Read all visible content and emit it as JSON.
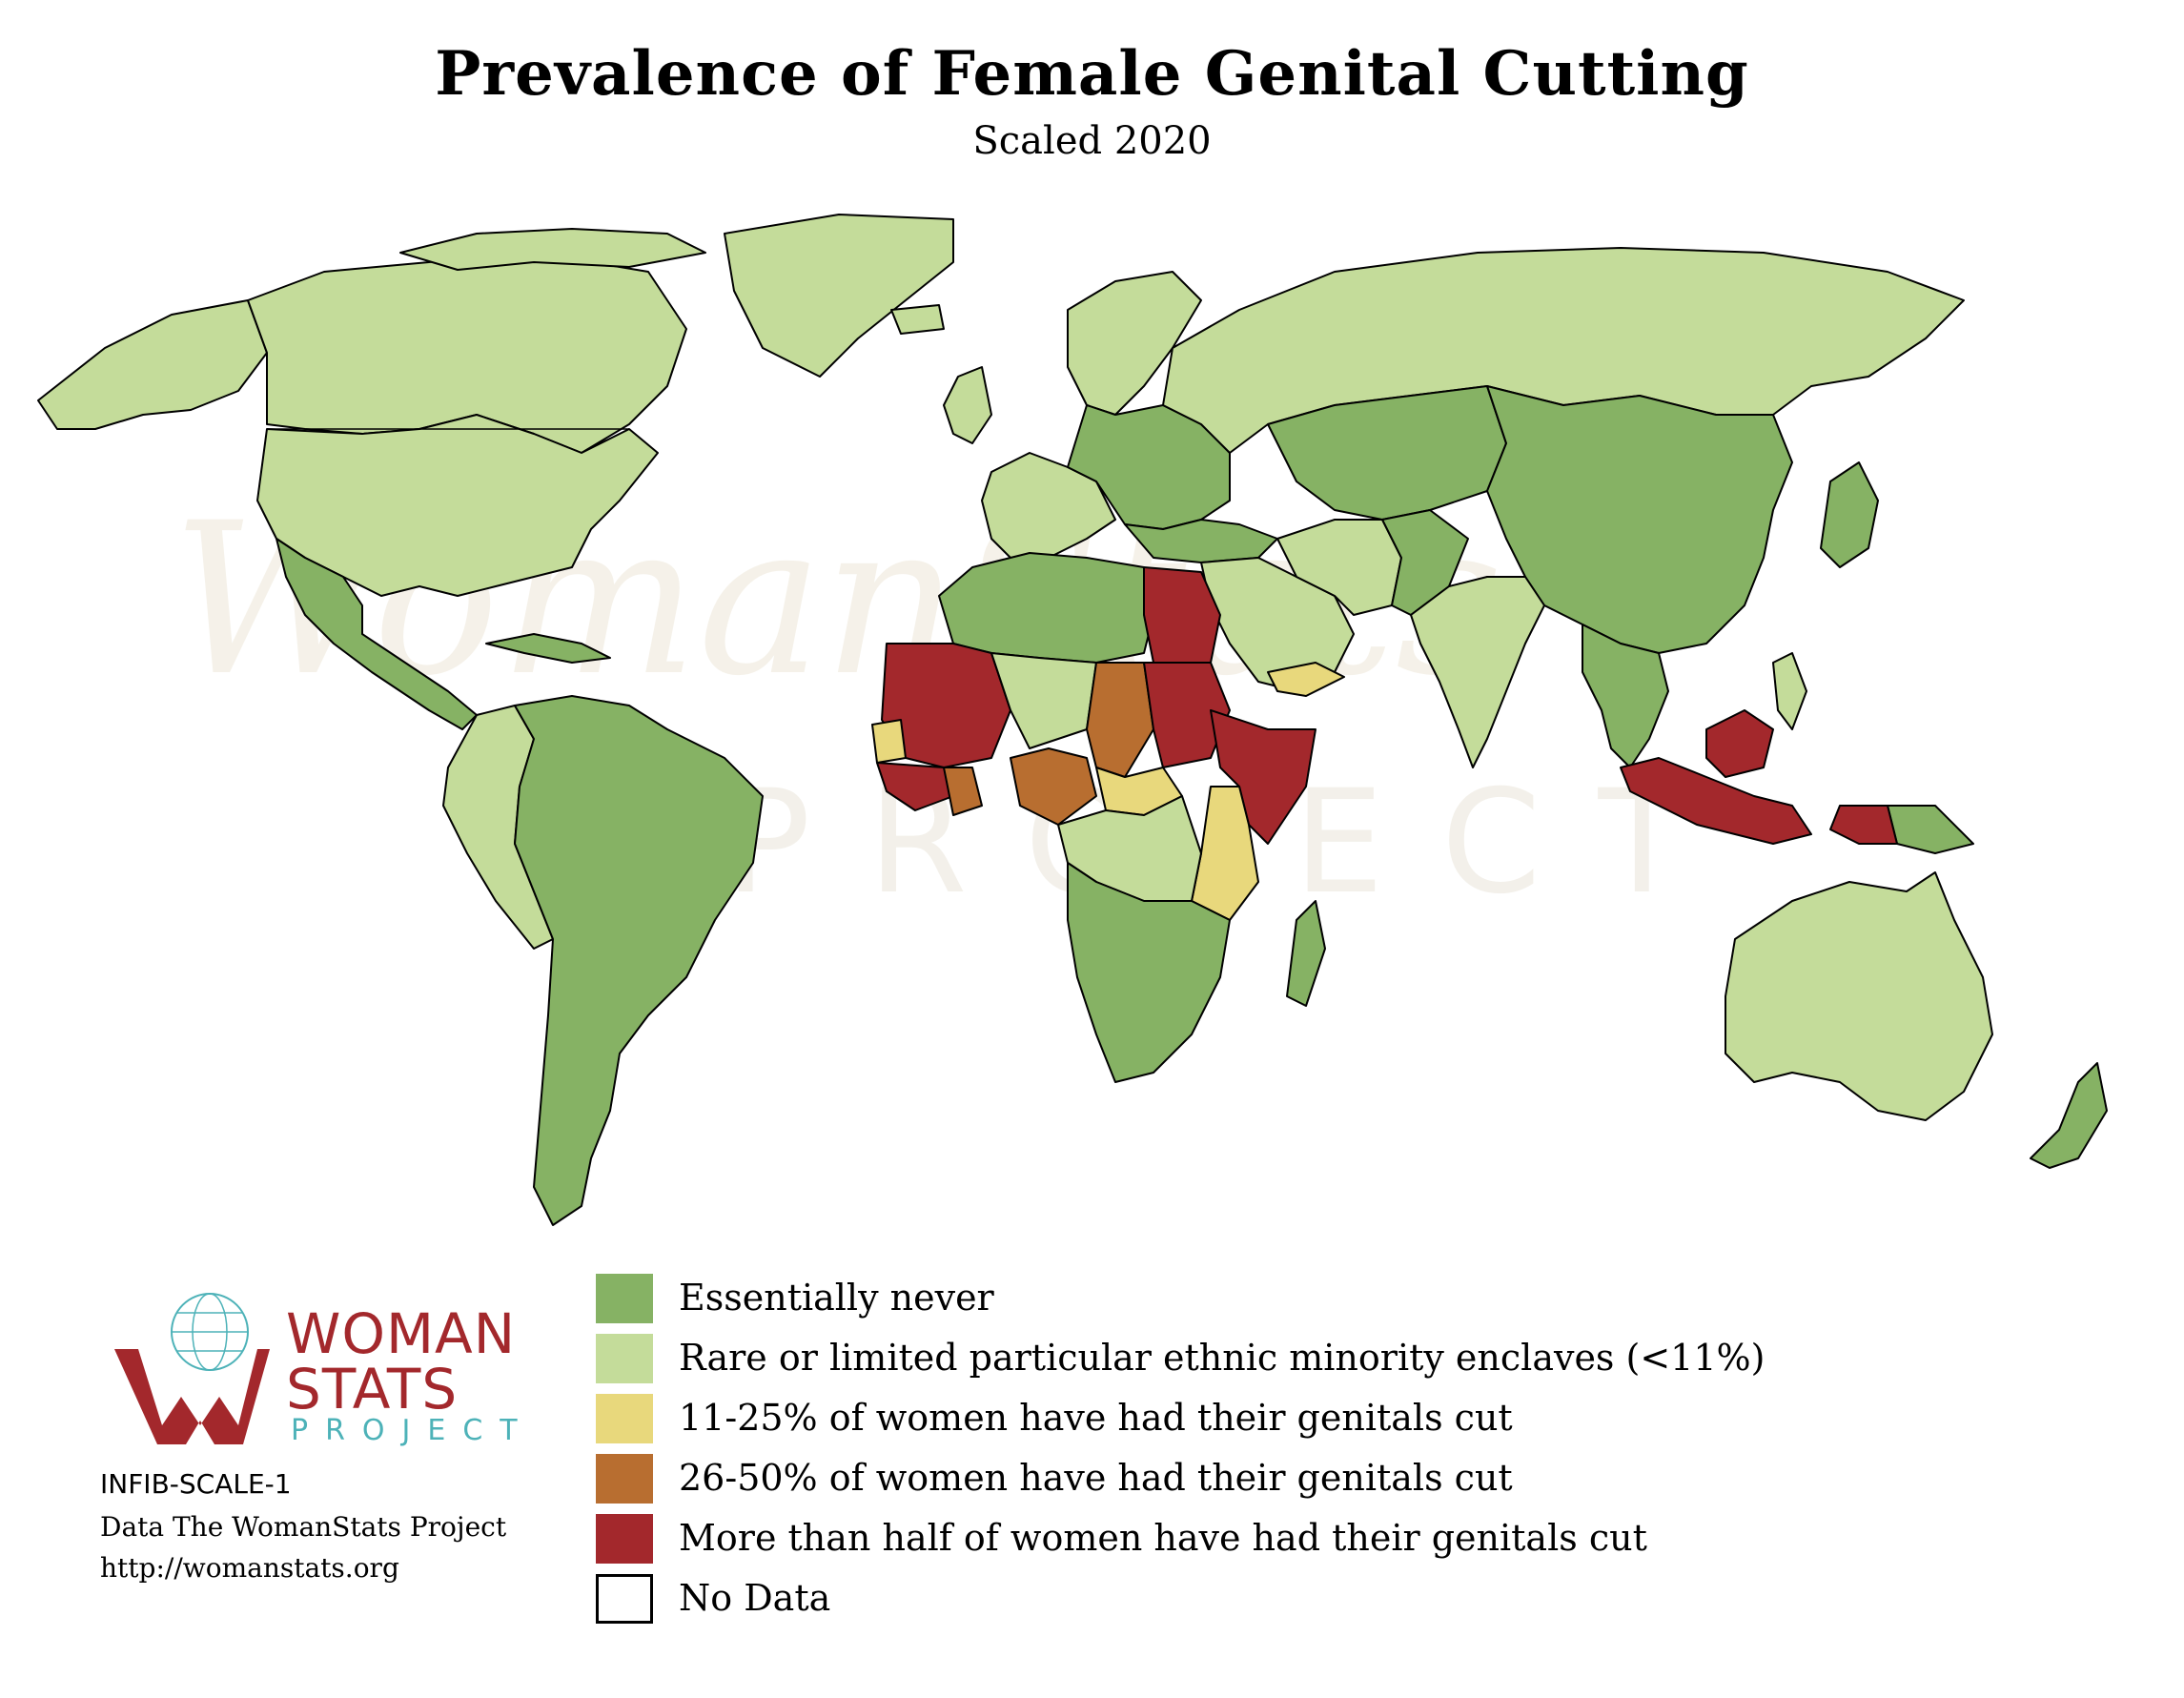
{
  "title": "Prevalence of Female Genital Cutting",
  "subtitle": "Scaled 2020",
  "colors": {
    "essentially_never": "#86b264",
    "rare": "#c4dc9a",
    "low": "#e8d87c",
    "medium": "#b86e30",
    "high": "#a3282c",
    "no_data": "#ffffff"
  },
  "legend": [
    {
      "label": "Essentially never",
      "color": "#86b264"
    },
    {
      "label": "Rare or limited particular ethnic minority enclaves (<11%)",
      "color": "#c4dc9a"
    },
    {
      "label": "11-25% of women have had their genitals cut",
      "color": "#e8d87c"
    },
    {
      "label": "26-50% of women have had their genitals cut",
      "color": "#b86e30"
    },
    {
      "label": "More than half of women have had their genitals cut",
      "color": "#a3282c"
    },
    {
      "label": "No Data",
      "color": "#ffffff"
    }
  ],
  "logo": {
    "line1": "WOMAN",
    "line2": "STATS",
    "line3": "PROJECT"
  },
  "source": {
    "code": "INFIB-SCALE-1",
    "credit": "Data The WomanStats Project",
    "url": "http://womanstats.org"
  }
}
